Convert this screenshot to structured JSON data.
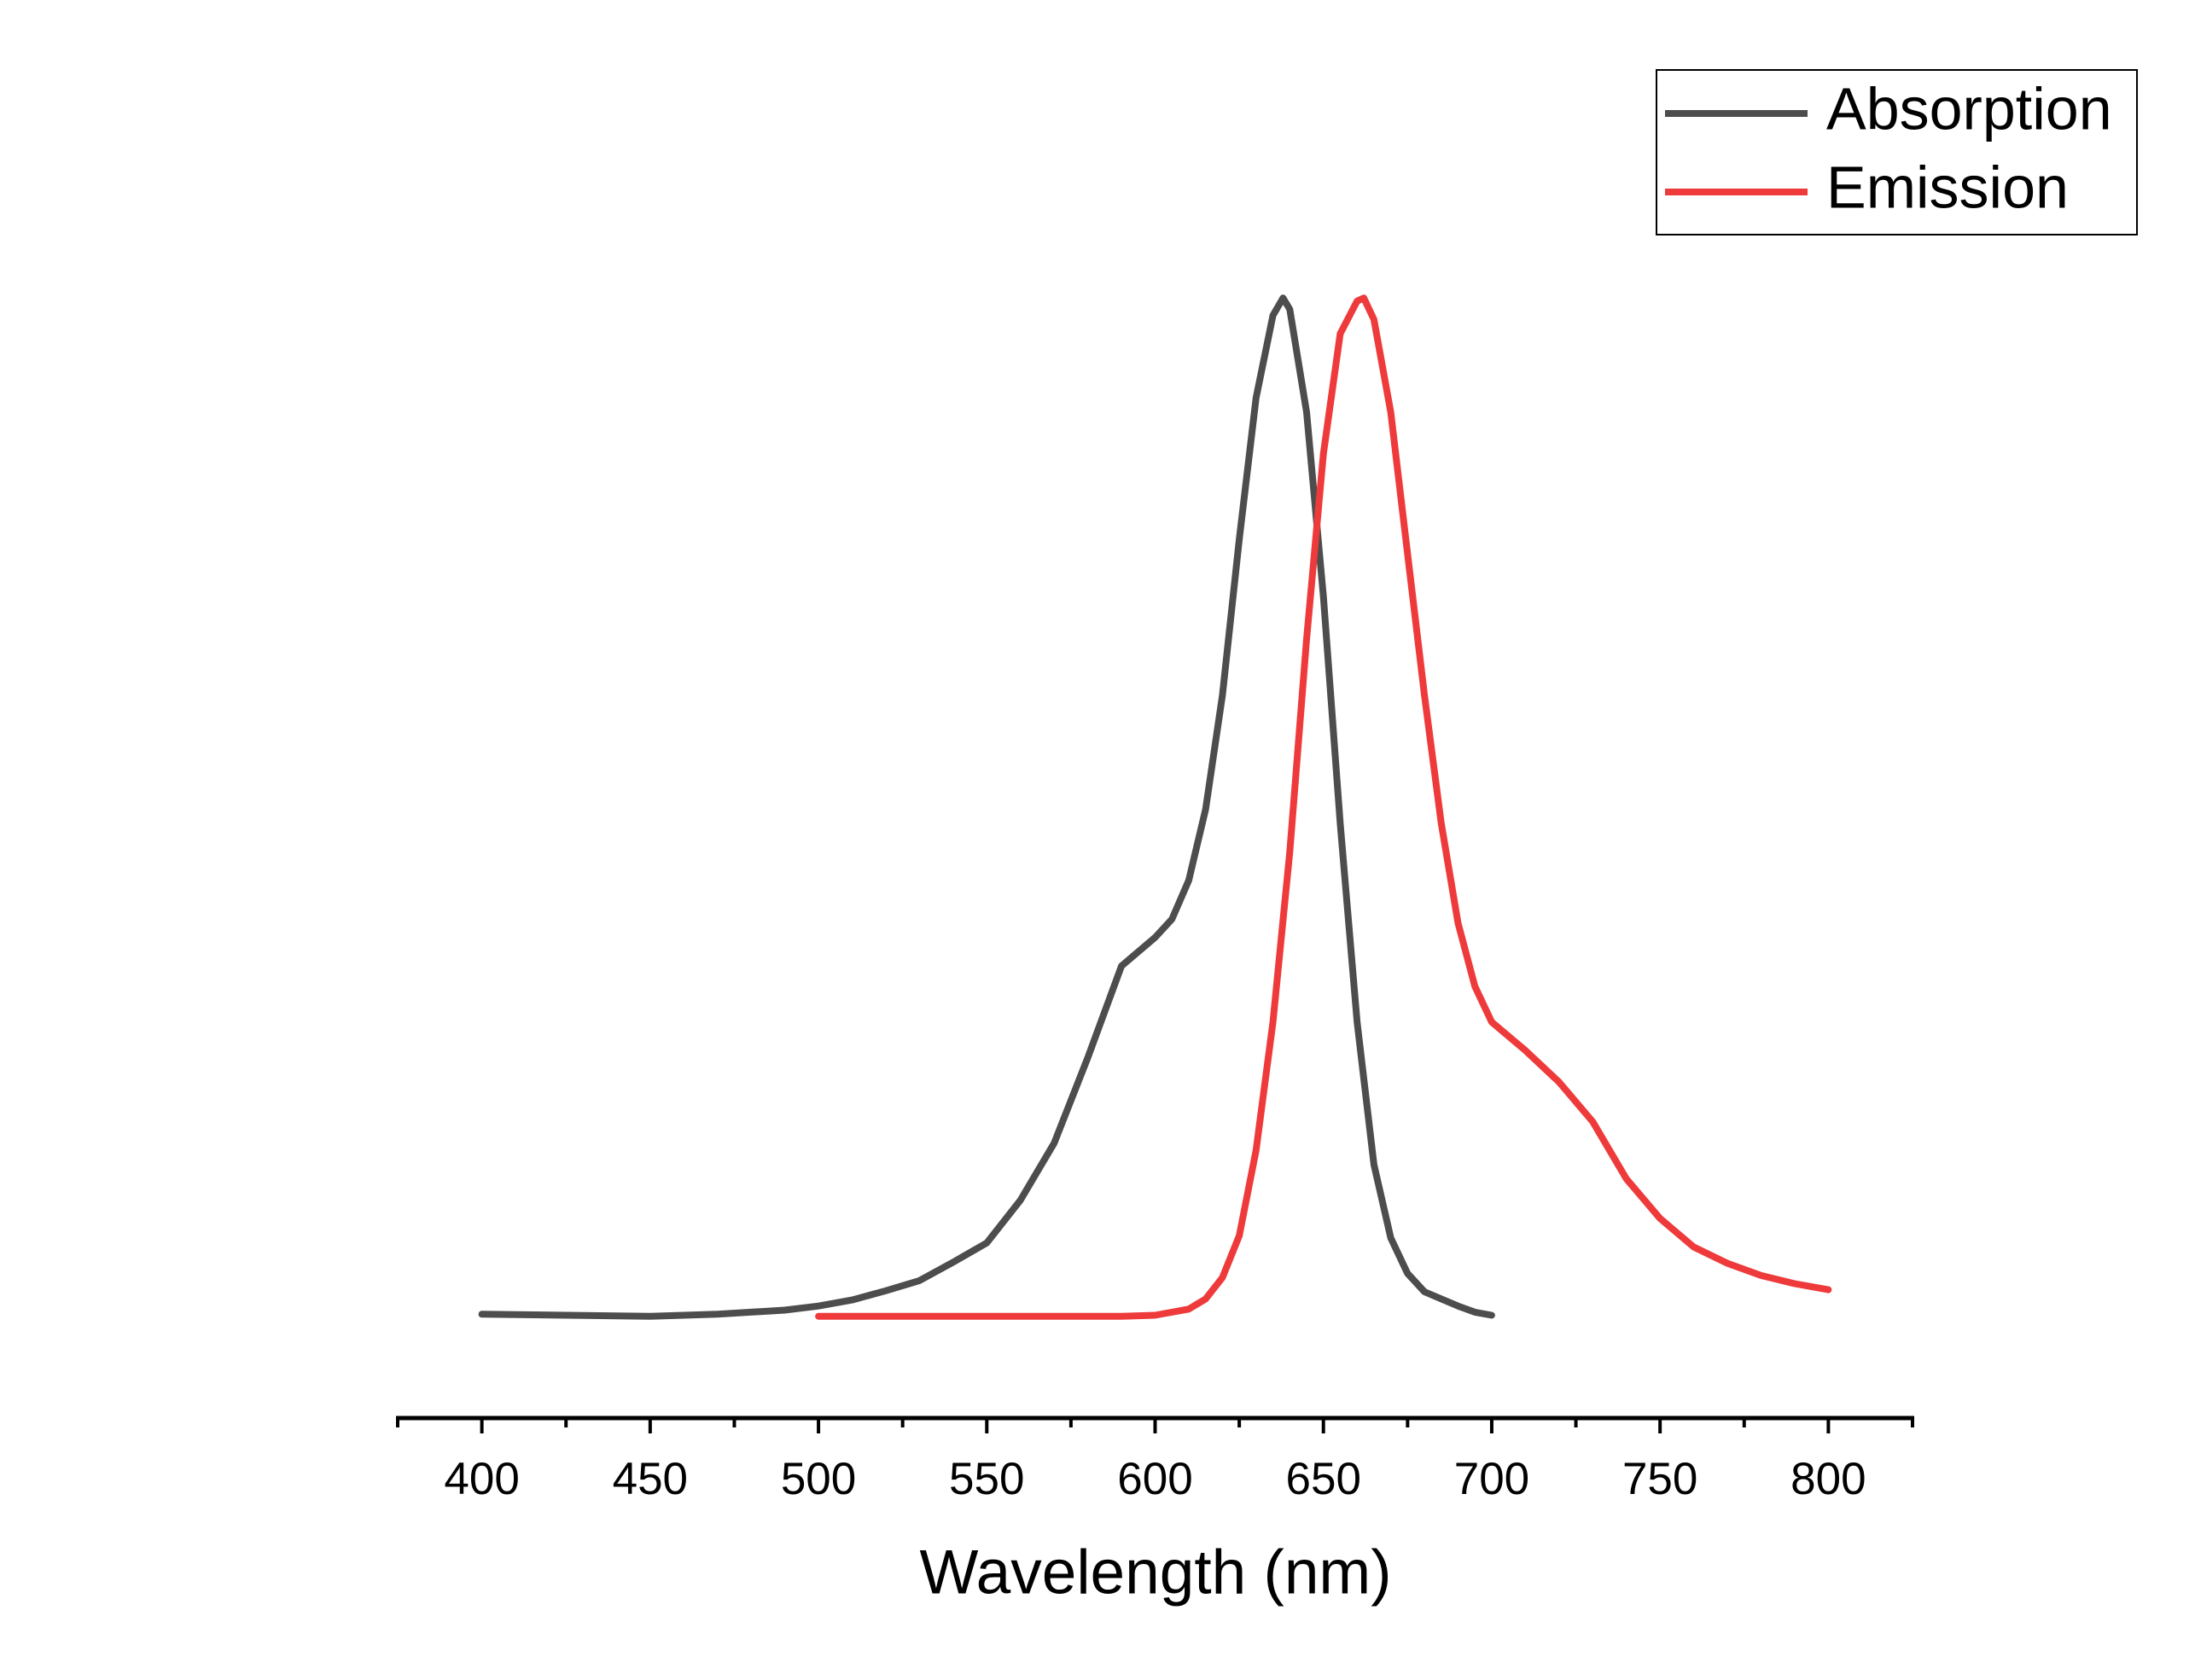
{
  "chart_data": {
    "type": "line",
    "xlabel": "Wavelength (nm)",
    "xlim": [
      375,
      825
    ],
    "xticks": [
      400,
      450,
      500,
      550,
      600,
      650,
      700,
      750,
      800
    ],
    "xminorticks": [
      375,
      425,
      475,
      525,
      575,
      625,
      675,
      725,
      775,
      825
    ],
    "ylim": [
      -0.1,
      1.1
    ],
    "legend": "top-right",
    "series": [
      {
        "name": "Absorption",
        "color": "#4d4d4d",
        "x": [
          400,
          450,
          470,
          490,
          500,
          510,
          520,
          530,
          540,
          550,
          560,
          570,
          580,
          590,
          600,
          605,
          610,
          615,
          620,
          625,
          630,
          635,
          638,
          640,
          645,
          650,
          655,
          660,
          665,
          670,
          675,
          680,
          690,
          695,
          700
        ],
        "values": [
          0.002,
          0,
          0.002,
          0.006,
          0.01,
          0.016,
          0.025,
          0.035,
          0.053,
          0.072,
          0.114,
          0.17,
          0.254,
          0.344,
          0.372,
          0.39,
          0.428,
          0.498,
          0.61,
          0.763,
          0.902,
          0.983,
          1.0,
          0.989,
          0.888,
          0.707,
          0.484,
          0.289,
          0.149,
          0.077,
          0.042,
          0.024,
          0.01,
          0.004,
          0.001
        ]
      },
      {
        "name": "Emission",
        "color": "#ee3a3a",
        "x": [
          500,
          550,
          590,
          600,
          610,
          615,
          620,
          625,
          630,
          635,
          640,
          645,
          650,
          655,
          660,
          662,
          665,
          670,
          675,
          680,
          685,
          690,
          695,
          700,
          710,
          720,
          730,
          740,
          750,
          760,
          770,
          780,
          790,
          800
        ],
        "values": [
          0,
          0,
          0,
          0.001,
          0.007,
          0.017,
          0.038,
          0.079,
          0.163,
          0.289,
          0.456,
          0.665,
          0.847,
          0.965,
          0.997,
          1.0,
          0.979,
          0.888,
          0.749,
          0.61,
          0.484,
          0.386,
          0.324,
          0.289,
          0.261,
          0.23,
          0.191,
          0.135,
          0.096,
          0.068,
          0.052,
          0.04,
          0.032,
          0.026
        ]
      }
    ]
  }
}
